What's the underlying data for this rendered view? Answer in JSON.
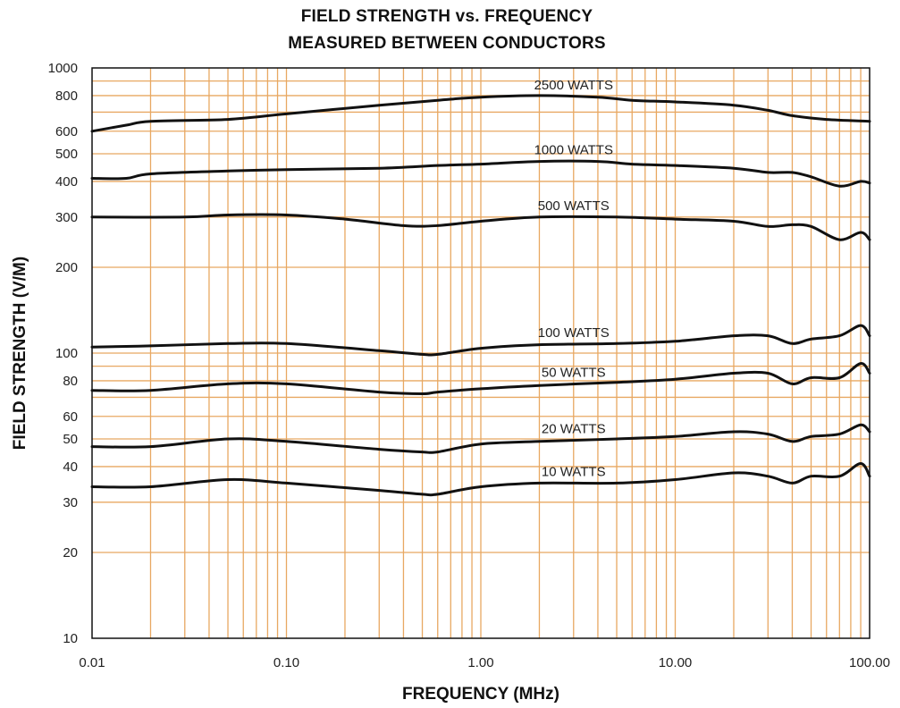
{
  "chart_data": {
    "type": "line",
    "title": "FIELD STRENGTH vs. FREQUENCY",
    "subtitle": "MEASURED BETWEEN CONDUCTORS",
    "xlabel": "FREQUENCY (MHz)",
    "ylabel": "FIELD STRENGTH (V/M)",
    "x_scale": "log",
    "y_scale": "log",
    "xlim": [
      0.01,
      100
    ],
    "ylim": [
      10,
      1000
    ],
    "grid": true,
    "grid_color": "#e8a862",
    "line_color": "#111111",
    "x_ticks": [
      0.01,
      0.1,
      1,
      10,
      100
    ],
    "x_tick_labels": [
      "0.01",
      "0.10",
      "1.00",
      "10.00",
      "100.00"
    ],
    "y_ticks": [
      10,
      20,
      30,
      40,
      50,
      60,
      80,
      100,
      200,
      300,
      400,
      500,
      600,
      800,
      1000
    ],
    "y_tick_labels": [
      "10",
      "20",
      "30",
      "40",
      "50",
      "60",
      "80",
      "100",
      "200",
      "300",
      "400",
      "500",
      "600",
      "800",
      "1000"
    ],
    "series": [
      {
        "name": "2500 WATTS",
        "points": [
          [
            0.01,
            600
          ],
          [
            0.015,
            630
          ],
          [
            0.02,
            650
          ],
          [
            0.05,
            660
          ],
          [
            0.1,
            690
          ],
          [
            0.3,
            740
          ],
          [
            0.6,
            770
          ],
          [
            1,
            790
          ],
          [
            2,
            800
          ],
          [
            4,
            790
          ],
          [
            6,
            770
          ],
          [
            10,
            760
          ],
          [
            20,
            740
          ],
          [
            30,
            710
          ],
          [
            40,
            680
          ],
          [
            60,
            660
          ],
          [
            100,
            650
          ]
        ]
      },
      {
        "name": "1000 WATTS",
        "points": [
          [
            0.01,
            410
          ],
          [
            0.015,
            410
          ],
          [
            0.02,
            425
          ],
          [
            0.05,
            435
          ],
          [
            0.1,
            440
          ],
          [
            0.3,
            445
          ],
          [
            0.6,
            455
          ],
          [
            1,
            460
          ],
          [
            2,
            470
          ],
          [
            4,
            470
          ],
          [
            6,
            460
          ],
          [
            10,
            455
          ],
          [
            20,
            445
          ],
          [
            30,
            430
          ],
          [
            40,
            430
          ],
          [
            50,
            415
          ],
          [
            70,
            385
          ],
          [
            90,
            400
          ],
          [
            100,
            395
          ]
        ]
      },
      {
        "name": "500 WATTS",
        "points": [
          [
            0.01,
            300
          ],
          [
            0.03,
            300
          ],
          [
            0.05,
            305
          ],
          [
            0.1,
            305
          ],
          [
            0.2,
            295
          ],
          [
            0.4,
            280
          ],
          [
            0.6,
            280
          ],
          [
            1,
            290
          ],
          [
            2,
            300
          ],
          [
            5,
            300
          ],
          [
            10,
            295
          ],
          [
            20,
            290
          ],
          [
            30,
            278
          ],
          [
            40,
            282
          ],
          [
            50,
            278
          ],
          [
            70,
            250
          ],
          [
            90,
            265
          ],
          [
            100,
            250
          ]
        ]
      },
      {
        "name": "100 WATTS",
        "points": [
          [
            0.01,
            105
          ],
          [
            0.02,
            106
          ],
          [
            0.05,
            108
          ],
          [
            0.1,
            108
          ],
          [
            0.3,
            102
          ],
          [
            0.5,
            99
          ],
          [
            0.6,
            99
          ],
          [
            1,
            104
          ],
          [
            2,
            107
          ],
          [
            5,
            108
          ],
          [
            10,
            110
          ],
          [
            20,
            115
          ],
          [
            30,
            115
          ],
          [
            40,
            108
          ],
          [
            50,
            112
          ],
          [
            70,
            115
          ],
          [
            90,
            125
          ],
          [
            100,
            115
          ]
        ]
      },
      {
        "name": "50 WATTS",
        "points": [
          [
            0.01,
            74
          ],
          [
            0.02,
            74
          ],
          [
            0.05,
            78
          ],
          [
            0.1,
            78
          ],
          [
            0.3,
            73
          ],
          [
            0.5,
            72
          ],
          [
            0.6,
            73
          ],
          [
            1,
            75
          ],
          [
            2,
            77
          ],
          [
            5,
            79
          ],
          [
            10,
            81
          ],
          [
            20,
            85
          ],
          [
            30,
            85
          ],
          [
            40,
            78
          ],
          [
            50,
            82
          ],
          [
            70,
            82
          ],
          [
            90,
            92
          ],
          [
            100,
            85
          ]
        ]
      },
      {
        "name": "20 WATTS",
        "points": [
          [
            0.01,
            47
          ],
          [
            0.02,
            47
          ],
          [
            0.05,
            50
          ],
          [
            0.1,
            49
          ],
          [
            0.3,
            46
          ],
          [
            0.5,
            45
          ],
          [
            0.6,
            45
          ],
          [
            1,
            48
          ],
          [
            2,
            49
          ],
          [
            5,
            50
          ],
          [
            10,
            51
          ],
          [
            20,
            53
          ],
          [
            30,
            52
          ],
          [
            40,
            49
          ],
          [
            50,
            51
          ],
          [
            70,
            52
          ],
          [
            90,
            56
          ],
          [
            100,
            53
          ]
        ]
      },
      {
        "name": "10 WATTS",
        "points": [
          [
            0.01,
            34
          ],
          [
            0.02,
            34
          ],
          [
            0.05,
            36
          ],
          [
            0.1,
            35
          ],
          [
            0.3,
            33
          ],
          [
            0.5,
            32
          ],
          [
            0.6,
            32
          ],
          [
            1,
            34
          ],
          [
            2,
            35
          ],
          [
            5,
            35
          ],
          [
            10,
            36
          ],
          [
            20,
            38
          ],
          [
            30,
            37
          ],
          [
            40,
            35
          ],
          [
            50,
            37
          ],
          [
            70,
            37
          ],
          [
            90,
            41
          ],
          [
            100,
            37
          ]
        ]
      }
    ]
  }
}
